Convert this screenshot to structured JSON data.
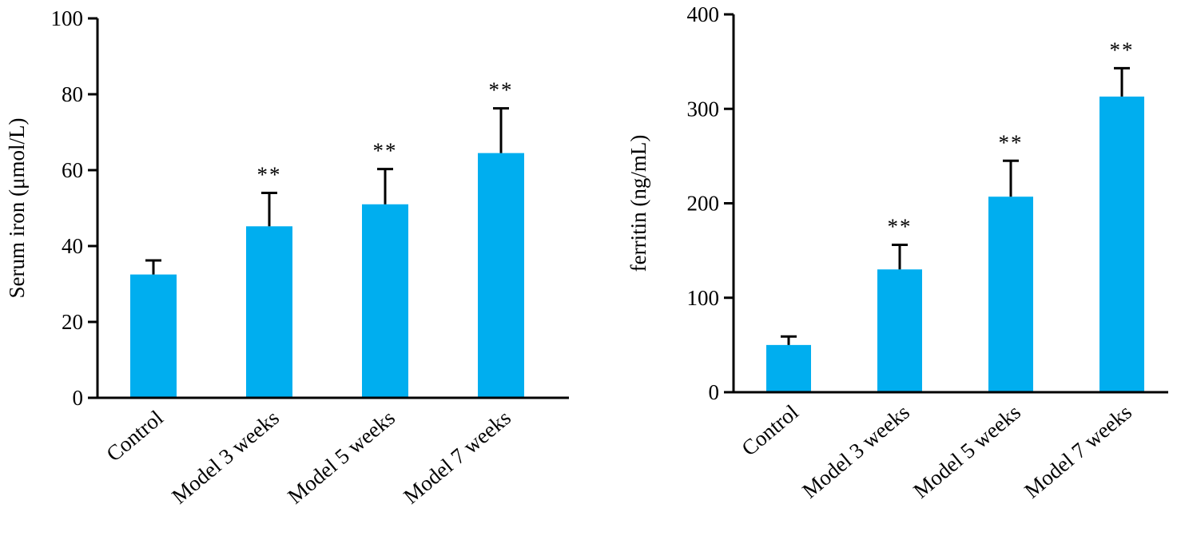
{
  "bar_color": "#00AEEF",
  "chart_data": [
    {
      "type": "bar",
      "categories": [
        "Control",
        "Model 3 weeks",
        "Model 5 weeks",
        "Model 7 weeks"
      ],
      "values": [
        32.5,
        45.2,
        51.0,
        64.5
      ],
      "errors": [
        3.7,
        8.8,
        9.3,
        11.8
      ],
      "significance": [
        "",
        "**",
        "**",
        "**"
      ],
      "xlabel": "",
      "ylabel": "Serum iron (μmol/L)",
      "ylim": [
        0,
        100
      ],
      "yticks": [
        0,
        20,
        40,
        60,
        80,
        100
      ],
      "grid": false,
      "legend": "none"
    },
    {
      "type": "bar",
      "categories": [
        "Control",
        "Model 3 weeks",
        "Model 5 weeks",
        "Model 7 weeks"
      ],
      "values": [
        50,
        130,
        207,
        313
      ],
      "errors": [
        9,
        26,
        38,
        30
      ],
      "significance": [
        "",
        "**",
        "**",
        "**"
      ],
      "xlabel": "",
      "ylabel": "ferritin (ng/mL)",
      "ylim": [
        0,
        400
      ],
      "yticks": [
        0,
        100,
        200,
        300,
        400
      ],
      "grid": false,
      "legend": "none"
    }
  ]
}
